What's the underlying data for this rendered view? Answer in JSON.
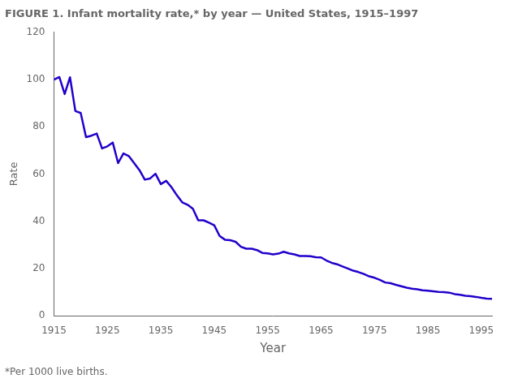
{
  "chart_data": {
    "type": "line",
    "title": "FIGURE 1. Infant mortality rate,* by year — United States, 1915–1997",
    "xlabel": "Year",
    "ylabel": "Rate",
    "annotations": [
      "*Per 1000 live births."
    ],
    "color": "#2200CC",
    "marker": "none",
    "grid": false,
    "xlim": [
      1915,
      1997
    ],
    "ylim": [
      0,
      120
    ],
    "xticks": [
      1915,
      1925,
      1935,
      1945,
      1955,
      1965,
      1975,
      1985,
      1995
    ],
    "yticks": [
      0,
      20,
      40,
      60,
      80,
      100,
      120
    ],
    "x": [
      1915,
      1916,
      1917,
      1918,
      1919,
      1920,
      1921,
      1922,
      1923,
      1924,
      1925,
      1926,
      1927,
      1928,
      1929,
      1930,
      1931,
      1932,
      1933,
      1934,
      1935,
      1936,
      1937,
      1938,
      1939,
      1940,
      1941,
      1942,
      1943,
      1944,
      1945,
      1946,
      1947,
      1948,
      1949,
      1950,
      1951,
      1952,
      1953,
      1954,
      1955,
      1956,
      1957,
      1958,
      1959,
      1960,
      1961,
      1962,
      1963,
      1964,
      1965,
      1966,
      1967,
      1968,
      1969,
      1970,
      1971,
      1972,
      1973,
      1974,
      1975,
      1976,
      1977,
      1978,
      1979,
      1980,
      1981,
      1982,
      1983,
      1984,
      1985,
      1986,
      1987,
      1988,
      1989,
      1990,
      1991,
      1992,
      1993,
      1994,
      1995,
      1996,
      1997
    ],
    "values": [
      99.9,
      101.0,
      93.8,
      100.9,
      86.6,
      85.8,
      75.6,
      76.2,
      77.1,
      70.8,
      71.7,
      73.3,
      64.6,
      68.7,
      67.6,
      64.6,
      61.6,
      57.6,
      58.1,
      60.1,
      55.7,
      57.1,
      54.4,
      51.0,
      48.0,
      47.0,
      45.3,
      40.4,
      40.4,
      39.4,
      38.3,
      33.8,
      32.2,
      32.0,
      31.3,
      29.2,
      28.4,
      28.4,
      27.8,
      26.6,
      26.4,
      26.0,
      26.3,
      27.1,
      26.4,
      26.0,
      25.3,
      25.3,
      25.2,
      24.8,
      24.7,
      23.4,
      22.4,
      21.8,
      20.9,
      20.0,
      19.1,
      18.5,
      17.7,
      16.7,
      16.1,
      15.2,
      14.1,
      13.8,
      13.1,
      12.5,
      11.9,
      11.5,
      11.2,
      10.8,
      10.6,
      10.4,
      10.1,
      10.0,
      9.8,
      9.2,
      8.9,
      8.5,
      8.3,
      8.0,
      7.6,
      7.3,
      7.2
    ]
  }
}
